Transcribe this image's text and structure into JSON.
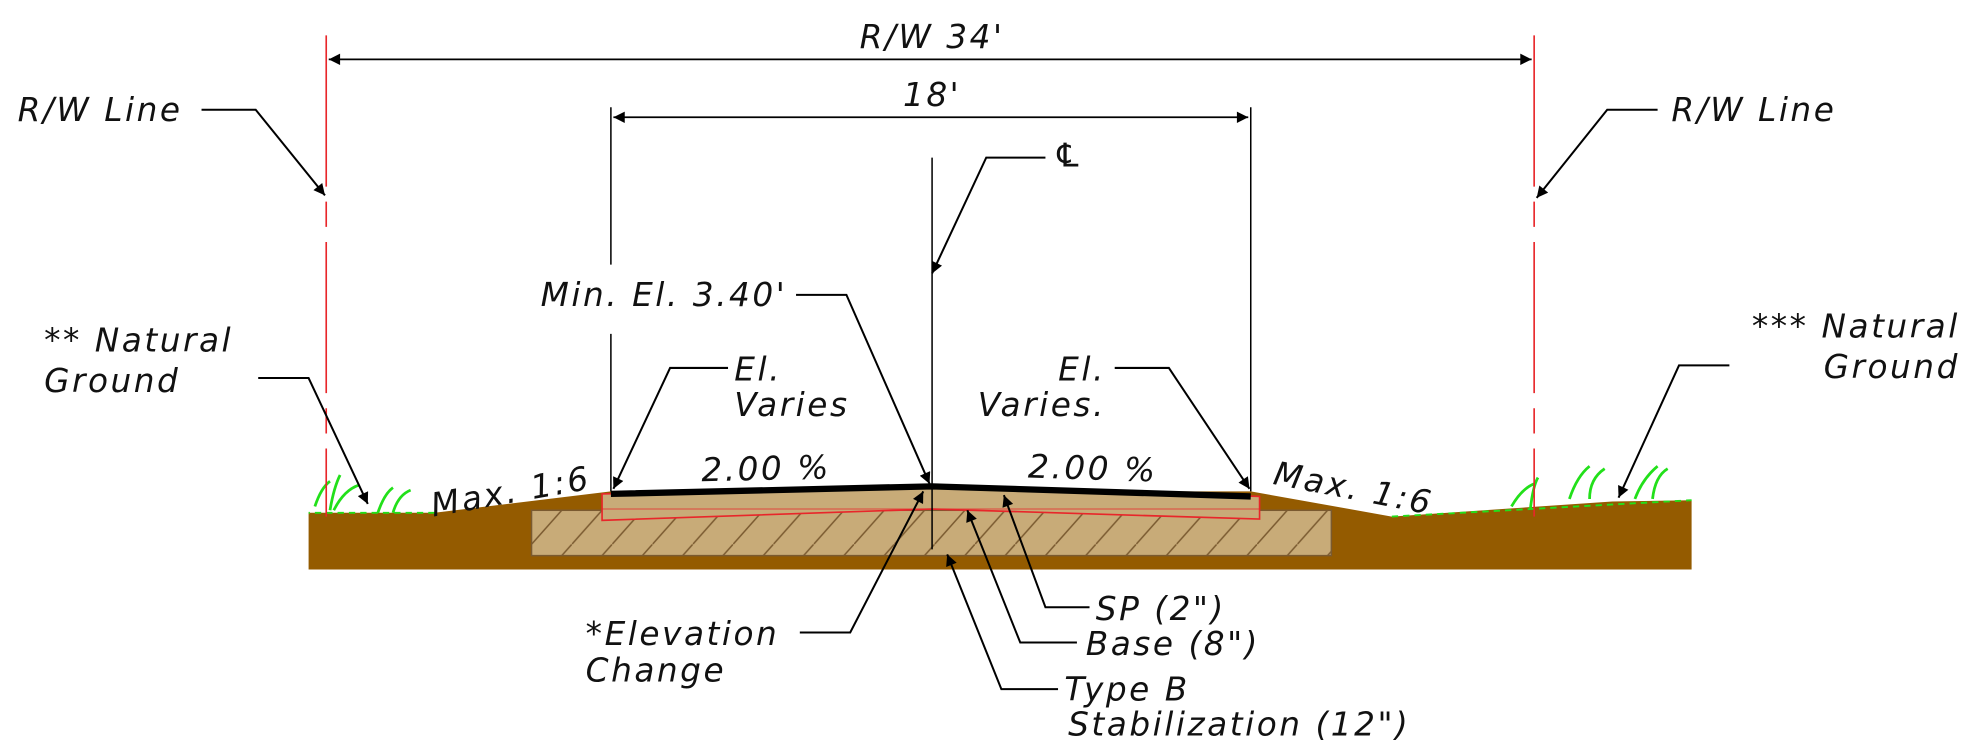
{
  "dimensions": {
    "right_of_way": "R/W 34'",
    "pavement": "18'"
  },
  "labels": {
    "rw_line_left": "R/W Line",
    "rw_line_right": "R/W Line",
    "centerline": "℄",
    "min_elevation": "Min. El. 3.40'",
    "natural_ground_left": [
      "** Natural",
      "Ground"
    ],
    "natural_ground_right": [
      "*** Natural",
      "Ground"
    ],
    "el_varies_left": [
      "El.",
      "Varies"
    ],
    "el_varies_right": [
      "El.",
      "Varies."
    ],
    "slope_left": "2.00 %",
    "slope_right": "2.00 %",
    "max_slope_left": "Max. 1:6",
    "max_slope_right": "Max. 1:6",
    "elevation_change": [
      "*Elevation",
      "Change"
    ],
    "sp": "SP (2\")",
    "base": "Base (8\")",
    "stabilization": [
      "Type B",
      "Stabilization (12\")"
    ]
  }
}
